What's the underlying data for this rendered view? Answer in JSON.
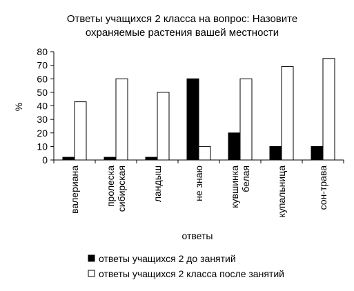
{
  "chart_data": {
    "type": "bar",
    "title": [
      "Ответы учащихся 2 класса на вопрос: Назовите",
      "охраняемые растения вашей местности"
    ],
    "xlabel": "ответы",
    "ylabel": "%",
    "ylim": [
      0,
      80
    ],
    "yticks": [
      0,
      10,
      20,
      30,
      40,
      50,
      60,
      70,
      80
    ],
    "grid": false,
    "legend_position": "bottom",
    "categories": [
      [
        "валериана"
      ],
      [
        "пролеска",
        "сибирская"
      ],
      [
        "ландыш"
      ],
      [
        "не знаю"
      ],
      [
        "кувшинка",
        "белая"
      ],
      [
        "купальница"
      ],
      [
        "сон-трава"
      ]
    ],
    "series": [
      {
        "name": "ответы учащихся 2 до занятий",
        "color": "#000000",
        "values": [
          2,
          2,
          2,
          60,
          20,
          10,
          10
        ]
      },
      {
        "name": "ответы учащихся 2 класса после занятий",
        "color": "#ffffff",
        "values": [
          43,
          60,
          50,
          10,
          60,
          69,
          75
        ]
      }
    ]
  }
}
